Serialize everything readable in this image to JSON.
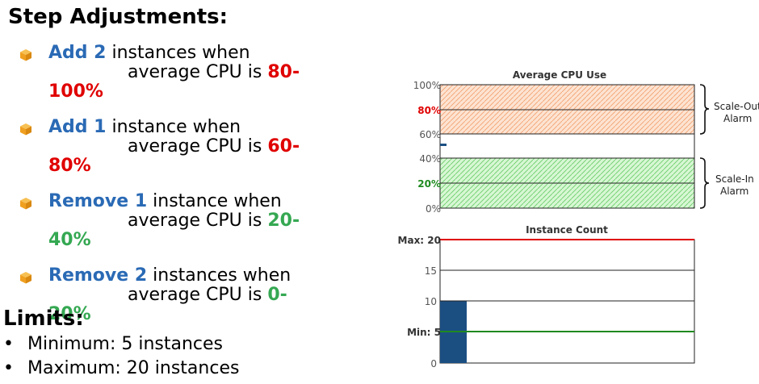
{
  "title": "Step Adjustments:",
  "steps": [
    {
      "action": "Add 2",
      "text1": " instances when",
      "text2": "average CPU is ",
      "range1": "80-",
      "range2": "100%",
      "color": "red"
    },
    {
      "action": "Add 1",
      "text1": " instance when",
      "text2": "average CPU is ",
      "range1": "60-",
      "range2": "80%",
      "color": "red"
    },
    {
      "action": "Remove 1",
      "text1": " instance when",
      "text2": "average CPU is ",
      "range1": "20-",
      "range2": "40%",
      "color": "green"
    },
    {
      "action": "Remove 2",
      "text1": " instances when",
      "text2": "average CPU is ",
      "range1": "0-",
      "range2": "20%",
      "color": "green"
    }
  ],
  "limits": {
    "title": "Limits:",
    "items": [
      "Minimum: 5 instances",
      "Maximum: 20 instances"
    ],
    "bullet": "•"
  },
  "cpu_chart": {
    "title": "Average CPU Use",
    "ticks": [
      "100%",
      "80%",
      "60%",
      "40%",
      "20%",
      "0%"
    ],
    "scale_out_line1": "Scale-Out",
    "scale_out_line2": "Alarm",
    "scale_in_line1": "Scale-In",
    "scale_in_line2": "Alarm"
  },
  "instance_chart": {
    "title": "Instance Count",
    "tick_max": "Max: 20",
    "tick_15": "15",
    "tick_10": "10",
    "tick_min": "Min: 5",
    "tick_0": "0",
    "current_instances": 10,
    "ylim": [
      0,
      20
    ]
  },
  "colors": {
    "action": "#2a6ab5",
    "red": "#e00000",
    "green": "#35a852",
    "max_line": "#e00000",
    "min_line": "#1f8a1f",
    "bar": "#1b4f82",
    "icon": "#f0a020"
  },
  "icon_name": "package-cube-icon"
}
